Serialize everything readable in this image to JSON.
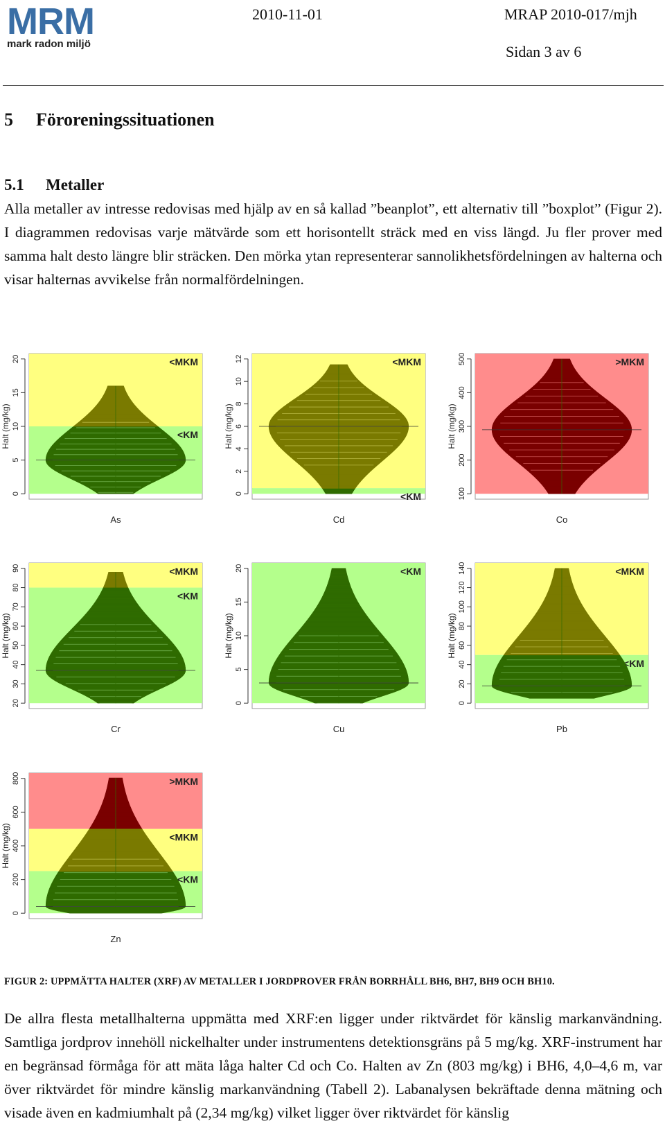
{
  "header": {
    "logo": "MRM",
    "logo_sub": "mark radon miljö",
    "date": "2010-11-01",
    "ref": "MRAP 2010-017/mjh",
    "page": "Sidan 3 av 6"
  },
  "section": {
    "number": "5",
    "title": "Föroreningssituationen"
  },
  "subsection": {
    "number": "5.1",
    "title": "Metaller"
  },
  "intro_text": "Alla metaller av intresse redovisas med hjälp av en så kallad ”beanplot”, ett alternativ till ”boxplot” (Figur 2). I diagrammen redovisas varje mätvärde som ett horisontellt sträck med en viss längd. Ju fler prover med samma halt desto längre blir sträcken. Den mörka ytan representerar sannolikhetsfördelningen av halterna och visar halternas avvikelse från normalfördelningen.",
  "chart_data": [
    {
      "type": "beanplot",
      "title": "As",
      "ylabel": "Halt (mg/kg)",
      "ylim": [
        0,
        20
      ],
      "yticks": [
        0,
        5,
        10,
        15,
        20
      ],
      "zones": [
        {
          "label": "<MKM",
          "from": 10,
          "to": 20,
          "color": "#ffff80"
        },
        {
          "label": "<KM",
          "from": 0,
          "to": 10,
          "color": "#b4ff8c"
        }
      ],
      "density_peak": 5,
      "range": [
        0,
        16
      ]
    },
    {
      "type": "beanplot",
      "title": "Cd",
      "ylabel": "Halt (mg/kg)",
      "ylim": [
        0,
        12
      ],
      "yticks": [
        0,
        2,
        4,
        6,
        8,
        10,
        12
      ],
      "zones": [
        {
          "label": "<MKM",
          "from": 0.5,
          "to": 12,
          "color": "#ffff80"
        },
        {
          "label": "<KM",
          "from": 0,
          "to": 0.5,
          "color": "#b4ff8c"
        }
      ],
      "density_peak": 6,
      "range": [
        0,
        11.5
      ]
    },
    {
      "type": "beanplot",
      "title": "Co",
      "ylabel": "Halt (mg/kg)",
      "ylim": [
        100,
        500
      ],
      "yticks": [
        100,
        200,
        300,
        400,
        500
      ],
      "zones": [
        {
          "label": ">MKM",
          "from": 100,
          "to": 500,
          "color": "#ff8c8c"
        }
      ],
      "density_peak": 290,
      "range": [
        100,
        500
      ]
    },
    {
      "type": "beanplot",
      "title": "Cr",
      "ylabel": "Halt (mg/kg)",
      "ylim": [
        20,
        90
      ],
      "yticks": [
        20,
        30,
        40,
        50,
        60,
        70,
        80,
        90
      ],
      "zones": [
        {
          "label": "<MKM",
          "from": 80,
          "to": 90,
          "color": "#ffff80"
        },
        {
          "label": "<KM",
          "from": 20,
          "to": 80,
          "color": "#b4ff8c"
        }
      ],
      "density_peak": 37,
      "range": [
        20,
        88
      ]
    },
    {
      "type": "beanplot",
      "title": "Cu",
      "ylabel": "Halt (mg/kg)",
      "ylim": [
        0,
        20
      ],
      "yticks": [
        0,
        5,
        10,
        15,
        20
      ],
      "zones": [
        {
          "label": "<KM",
          "from": 0,
          "to": 20,
          "color": "#b4ff8c"
        }
      ],
      "density_peak": 3,
      "range": [
        0,
        20
      ]
    },
    {
      "type": "beanplot",
      "title": "Pb",
      "ylabel": "Halt (mg/kg)",
      "ylim": [
        0,
        140
      ],
      "yticks": [
        0,
        20,
        40,
        60,
        80,
        100,
        120,
        140
      ],
      "zones": [
        {
          "label": "<MKM",
          "from": 50,
          "to": 140,
          "color": "#ffff80"
        },
        {
          "label": "<KM",
          "from": 0,
          "to": 50,
          "color": "#b4ff8c"
        }
      ],
      "density_peak": 18,
      "range": [
        5,
        140
      ]
    },
    {
      "type": "beanplot",
      "title": "Zn",
      "ylabel": "Halt (mg/kg)",
      "ylim": [
        0,
        800
      ],
      "yticks": [
        0,
        200,
        400,
        600,
        800
      ],
      "zones": [
        {
          "label": ">MKM",
          "from": 500,
          "to": 800,
          "color": "#ff8c8c"
        },
        {
          "label": "<MKM",
          "from": 250,
          "to": 500,
          "color": "#ffff80"
        },
        {
          "label": "<KM",
          "from": 0,
          "to": 250,
          "color": "#b4ff8c"
        }
      ],
      "density_peak": 40,
      "range": [
        0,
        803
      ]
    }
  ],
  "figure_caption": "FIGUR 2: UPPMÄTTA HALTER (XRF) AV METALLER I JORDPROVER FRÅN BORRHÅLL BH6, BH7, BH9 OCH BH10.",
  "body_text": "De allra flesta metallhalterna uppmätta med XRF:en ligger under riktvärdet för känslig markanvändning. Samtliga jordprov innehöll nickelhalter under instrumentens detektionsgräns på 5 mg/kg. XRF-instrument har en begränsad förmåga för att mäta låga halter Cd och Co. Halten av Zn (803 mg/kg) i BH6, 4,0–4,6 m, var över riktvärdet för mindre känslig markanvändning (Tabell 2). Labanalysen bekräftade denna mätning och visade även en kadmiumhalt på (2,34 mg/kg) vilket ligger över riktvärdet för känslig",
  "colors": {
    "logo": "#3a6ea5",
    "zone_red": "#ff8c8c",
    "zone_yellow": "#ffff80",
    "zone_green": "#b4ff8c"
  }
}
